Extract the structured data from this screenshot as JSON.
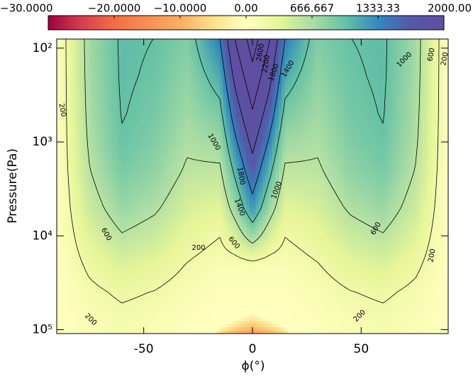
{
  "chart_data": {
    "type": "contour",
    "xlabel": "ϕ(°)",
    "ylabel": "Pressure(Pa)",
    "xlim": [
      -90,
      90
    ],
    "xticks": [
      -50,
      0,
      50
    ],
    "ylim": [
      80,
      110000
    ],
    "yscale": "log",
    "yaxis_inverted": true,
    "yticks": [
      {
        "value": 100,
        "label": "10²"
      },
      {
        "value": 1000,
        "label": "10³"
      },
      {
        "value": 10000,
        "label": "10⁴"
      },
      {
        "value": 100000,
        "label": "10⁵"
      }
    ],
    "x": [
      -90,
      -75,
      -60,
      -45,
      -30,
      -15,
      -8,
      0,
      8,
      15,
      30,
      45,
      60,
      75,
      90
    ],
    "y": [
      80,
      200,
      500,
      1000,
      2000,
      5000,
      10000,
      20000,
      40000,
      70000,
      110000
    ],
    "z": [
      [
        0,
        709,
        1041,
        998,
        867,
        1395,
        2214,
        2789,
        2214,
        1395,
        867,
        998,
        1041,
        709,
        0
      ],
      [
        0,
        695,
        1034,
        966,
        793,
        1142,
        1903,
        2482,
        1903,
        1142,
        793,
        966,
        1034,
        695,
        0
      ],
      [
        0,
        671,
        1013,
        923,
        716,
        904,
        1582,
        2162,
        1582,
        904,
        716,
        923,
        1013,
        671,
        0
      ],
      [
        0,
        640,
        975,
        872,
        646,
        725,
        1329,
        1908,
        1329,
        725,
        646,
        872,
        975,
        640,
        0
      ],
      [
        0,
        588,
        907,
        795,
        563,
        557,
        1075,
        1644,
        1075,
        557,
        563,
        795,
        907,
        588,
        0
      ],
      [
        0,
        480,
        750,
        640,
        425,
        350,
        739,
        1264,
        739,
        350,
        425,
        640,
        750,
        480,
        0
      ],
      [
        0,
        368,
        582,
        486,
        306,
        205,
        410,
        768,
        410,
        205,
        306,
        486,
        582,
        368,
        0
      ],
      [
        0,
        250,
        400,
        327,
        193,
        98,
        97,
        133,
        97,
        98,
        193,
        327,
        400,
        250,
        0
      ],
      [
        0,
        147,
        238,
        191,
        103,
        38,
        22,
        24,
        22,
        38,
        103,
        191,
        238,
        147,
        0
      ],
      [
        0,
        96,
        157,
        121,
        60,
        10,
        3,
        -2,
        3,
        10,
        60,
        121,
        157,
        96,
        0
      ],
      [
        0,
        82,
        135,
        98,
        20,
        -6,
        -10,
        -12,
        -10,
        -6,
        20,
        98,
        135,
        82,
        0
      ]
    ],
    "levels": [
      200,
      600,
      1000,
      1400,
      1800,
      2200,
      2600
    ],
    "contour_color": "#000000",
    "colormap": [
      {
        "value": -30,
        "color": "#9e0142"
      },
      {
        "value": -25,
        "color": "#d53e4f"
      },
      {
        "value": -20,
        "color": "#f46d43"
      },
      {
        "value": -10,
        "color": "#fdae61"
      },
      {
        "value": -5,
        "color": "#fee08b"
      },
      {
        "value": 0,
        "color": "#ffffbf"
      },
      {
        "value": 333,
        "color": "#e6f598"
      },
      {
        "value": 666,
        "color": "#abdda4"
      },
      {
        "value": 1000,
        "color": "#66c2a5"
      },
      {
        "value": 1333,
        "color": "#3288bd"
      },
      {
        "value": 1667,
        "color": "#5558a8"
      },
      {
        "value": 2000,
        "color": "#5e4fa2"
      }
    ],
    "colorbar": {
      "ticks": [
        {
          "value": -30,
          "label": "−30.0000"
        },
        {
          "value": -20,
          "label": "−20.0000"
        },
        {
          "value": -10,
          "label": "−10.0000"
        },
        {
          "value": 0,
          "label": "0.00"
        },
        666.667,
        1333.33,
        {
          "value": 2000,
          "label": "2000.00"
        }
      ]
    }
  }
}
